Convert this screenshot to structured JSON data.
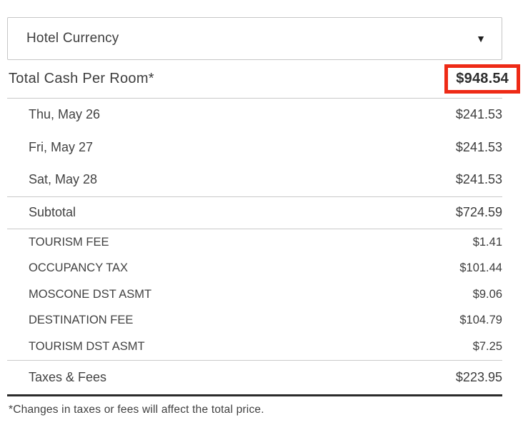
{
  "currency_selector": {
    "value": "Hotel Currency",
    "caret_icon": "▼"
  },
  "total_row": {
    "label": "Total Cash Per Room*",
    "amount": "$948.54"
  },
  "nightly_rates": [
    {
      "label": "Thu, May 26",
      "amount": "$241.53"
    },
    {
      "label": "Fri, May 27",
      "amount": "$241.53"
    },
    {
      "label": "Sat, May 28",
      "amount": "$241.53"
    }
  ],
  "subtotal_row": {
    "label": "Subtotal",
    "amount": "$724.59"
  },
  "tax_rows": [
    {
      "label": "TOURISM FEE",
      "amount": "$1.41"
    },
    {
      "label": "OCCUPANCY TAX",
      "amount": "$101.44"
    },
    {
      "label": "MOSCONE DST ASMT",
      "amount": "$9.06"
    },
    {
      "label": "DESTINATION FEE",
      "amount": "$104.79"
    },
    {
      "label": "TOURISM DST ASMT",
      "amount": "$7.25"
    }
  ],
  "taxes_total_row": {
    "label": "Taxes & Fees",
    "amount": "$223.95"
  },
  "footnote": "*Changes in taxes or fees will affect the total price.",
  "colors": {
    "highlight_border": "#ee2a16",
    "text": "#404040",
    "divider": "#c9c9c9",
    "strong_divider": "#2b2b2b",
    "dropdown_border": "#c6c6c6"
  }
}
